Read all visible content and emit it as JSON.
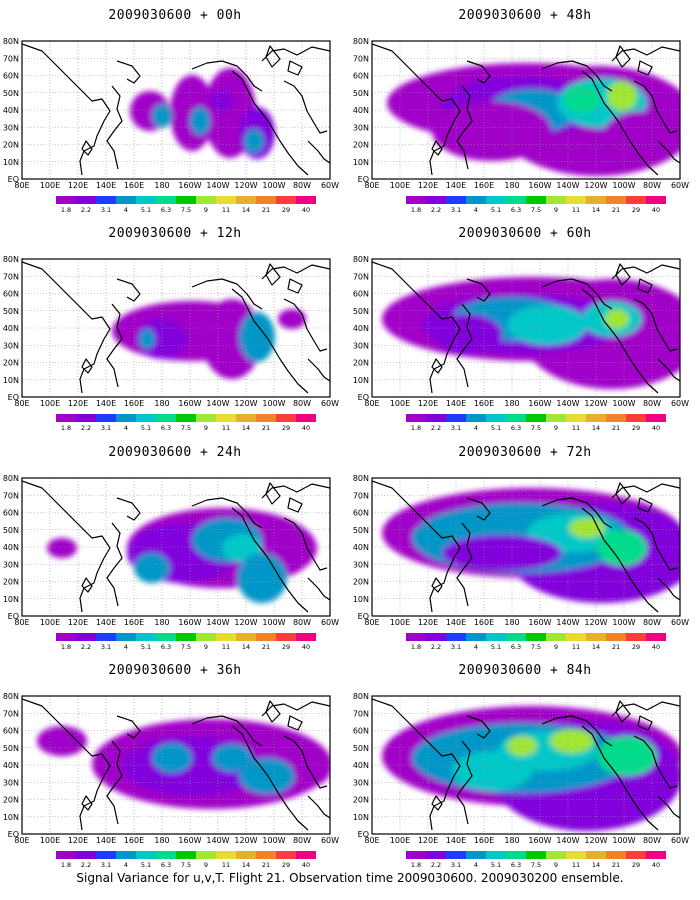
{
  "panels": [
    {
      "title": "2009030600 + 00h"
    },
    {
      "title": "2009030600 + 48h"
    },
    {
      "title": "2009030600 + 12h"
    },
    {
      "title": "2009030600 + 60h"
    },
    {
      "title": "2009030600 + 24h"
    },
    {
      "title": "2009030600 + 72h"
    },
    {
      "title": "2009030600 + 36h"
    },
    {
      "title": "2009030600 + 84h"
    }
  ],
  "lon_labels": [
    "80E",
    "100E",
    "120E",
    "140E",
    "160E",
    "180",
    "160W",
    "140W",
    "120W",
    "100W",
    "80W",
    "60W"
  ],
  "lat_labels": [
    "80N",
    "70N",
    "60N",
    "50N",
    "40N",
    "30N",
    "20N",
    "10N",
    "EQ"
  ],
  "colorbar": {
    "labels": [
      "1.8",
      "2.2",
      "3.1",
      "4",
      "5.1",
      "6.3",
      "7.5",
      "9",
      "11",
      "14",
      "21",
      "29",
      "40"
    ],
    "colors": [
      "#a000c8",
      "#8200dc",
      "#1e3cff",
      "#0096c8",
      "#00c8c8",
      "#00dc8c",
      "#00c800",
      "#a0e632",
      "#e6dc32",
      "#e6af2d",
      "#f08228",
      "#fa3c3c",
      "#f00082"
    ]
  },
  "footer": "Signal Variance for u,v,T. Flight 21. Observation time 2009030600. 2009030200 ensemble."
}
